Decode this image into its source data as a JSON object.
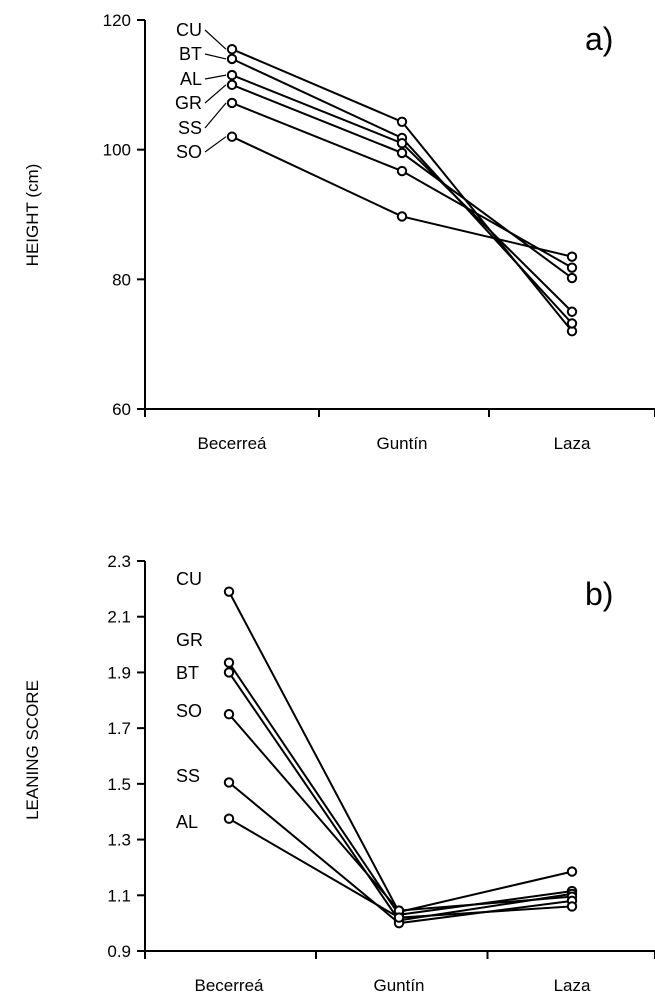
{
  "chart_data": [
    {
      "type": "line",
      "panel_label": "a)",
      "ylabel": "HEIGHT (cm)",
      "categories": [
        "Becerreá",
        "Guntín",
        "Laza"
      ],
      "ylim": [
        60,
        120
      ],
      "yticks": [
        60,
        80,
        100,
        120
      ],
      "grid": false,
      "series": [
        {
          "name": "CU",
          "values": [
            115.5,
            104.3,
            72.0
          ]
        },
        {
          "name": "BT",
          "values": [
            114.0,
            101.8,
            73.2
          ]
        },
        {
          "name": "AL",
          "values": [
            111.5,
            101.0,
            75.0
          ]
        },
        {
          "name": "GR",
          "values": [
            110.0,
            99.5,
            80.2
          ]
        },
        {
          "name": "SS",
          "values": [
            107.2,
            96.7,
            81.8
          ]
        },
        {
          "name": "SO",
          "values": [
            102.0,
            89.7,
            83.5
          ]
        }
      ]
    },
    {
      "type": "line",
      "panel_label": "b)",
      "ylabel": "LEANING  SCORE",
      "categories": [
        "Becerreá",
        "Guntín",
        "Laza"
      ],
      "ylim": [
        0.9,
        2.3
      ],
      "yticks": [
        0.9,
        1.1,
        1.3,
        1.5,
        1.7,
        1.9,
        2.1,
        2.3
      ],
      "grid": false,
      "series": [
        {
          "name": "CU",
          "values": [
            2.19,
            1.04,
            1.185
          ]
        },
        {
          "name": "GR",
          "values": [
            1.935,
            1.03,
            1.115
          ]
        },
        {
          "name": "BT",
          "values": [
            1.9,
            1.01,
            1.105
          ]
        },
        {
          "name": "SO",
          "values": [
            1.75,
            1.045,
            1.095
          ]
        },
        {
          "name": "SS",
          "values": [
            1.505,
            1.0,
            1.08
          ]
        },
        {
          "name": "AL",
          "values": [
            1.375,
            1.02,
            1.06
          ]
        }
      ]
    }
  ]
}
